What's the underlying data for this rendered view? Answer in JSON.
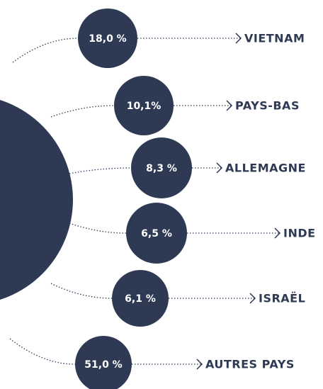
{
  "items": [
    {
      "share": "18,0 %",
      "country": "VIETNAM"
    },
    {
      "share": "10,1%",
      "country": "PAYS-BAS"
    },
    {
      "share": "8,3 %",
      "country": "ALLEMAGNE"
    },
    {
      "share": "6,5 %",
      "country": "INDE"
    },
    {
      "share": "6,1 %",
      "country": "ISRAËL"
    },
    {
      "share": "51,0 %",
      "country": "AUTRES PAYS"
    }
  ]
}
